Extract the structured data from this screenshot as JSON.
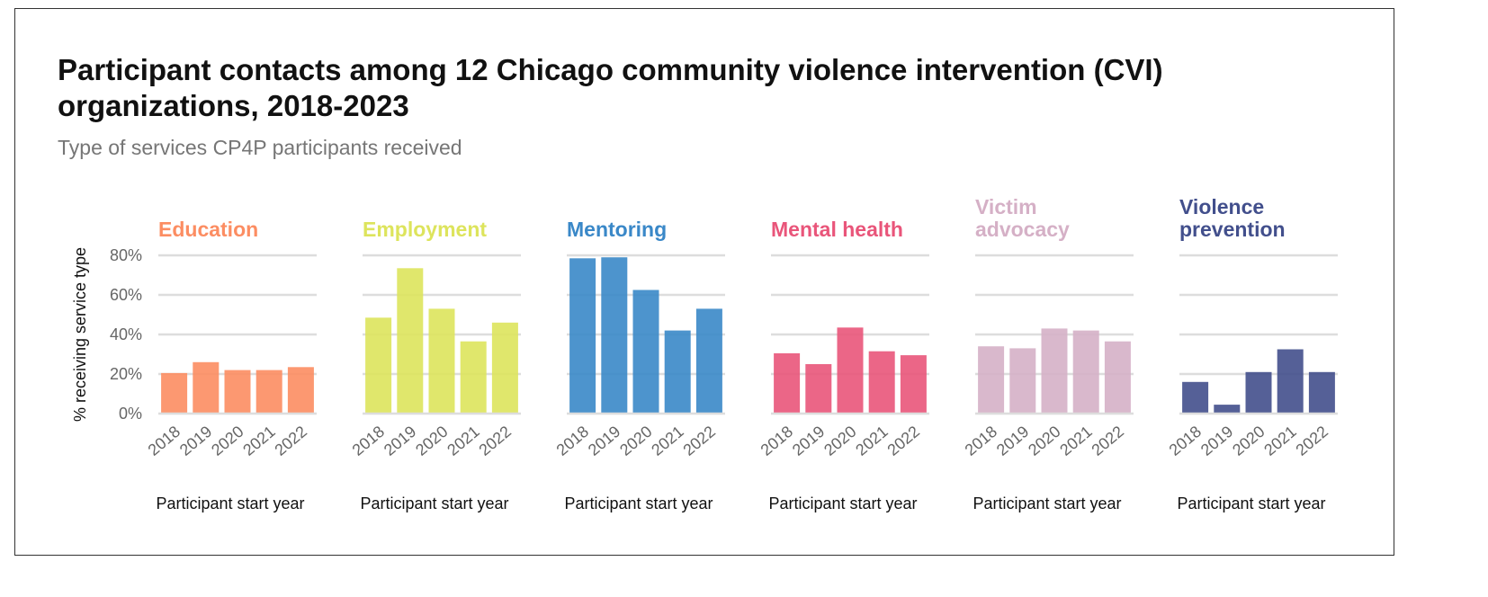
{
  "title": "Participant contacts among 12 Chicago community violence intervention (CVI) organizations, 2018-2023",
  "subtitle": "Type of services CP4P participants received",
  "chart_data": {
    "type": "bar",
    "categories": [
      "2018",
      "2019",
      "2020",
      "2021",
      "2022"
    ],
    "ylabel": "% receiving service type",
    "xlabel": "Participant start year",
    "ylim": [
      0,
      80
    ],
    "yticks": [
      "0%",
      "20%",
      "40%",
      "60%",
      "80%"
    ],
    "grid": true,
    "series": [
      {
        "name": "Education",
        "title_lines": [
          "Education"
        ],
        "color": "#fc8d62",
        "values": [
          20.5,
          26,
          22,
          22,
          23.5
        ]
      },
      {
        "name": "Employment",
        "title_lines": [
          "Employment"
        ],
        "color": "#dde45c",
        "values": [
          48.5,
          73.5,
          53,
          36.5,
          46
        ]
      },
      {
        "name": "Mentoring",
        "title_lines": [
          "Mentoring"
        ],
        "color": "#3a88c8",
        "values": [
          78.5,
          79,
          62.5,
          42,
          53
        ]
      },
      {
        "name": "Mental health",
        "title_lines": [
          "Mental health"
        ],
        "color": "#e9557a",
        "values": [
          30.5,
          25,
          43.5,
          31.5,
          29.5
        ]
      },
      {
        "name": "Victim advocacy",
        "title_lines": [
          "Victim",
          "advocacy"
        ],
        "color": "#d5b0c6",
        "values": [
          34,
          33,
          43,
          42,
          36.5
        ]
      },
      {
        "name": "Violence prevention",
        "title_lines": [
          "Violence",
          "prevention"
        ],
        "color": "#424f8c",
        "values": [
          16,
          4.5,
          21,
          32.5,
          21
        ]
      }
    ]
  }
}
